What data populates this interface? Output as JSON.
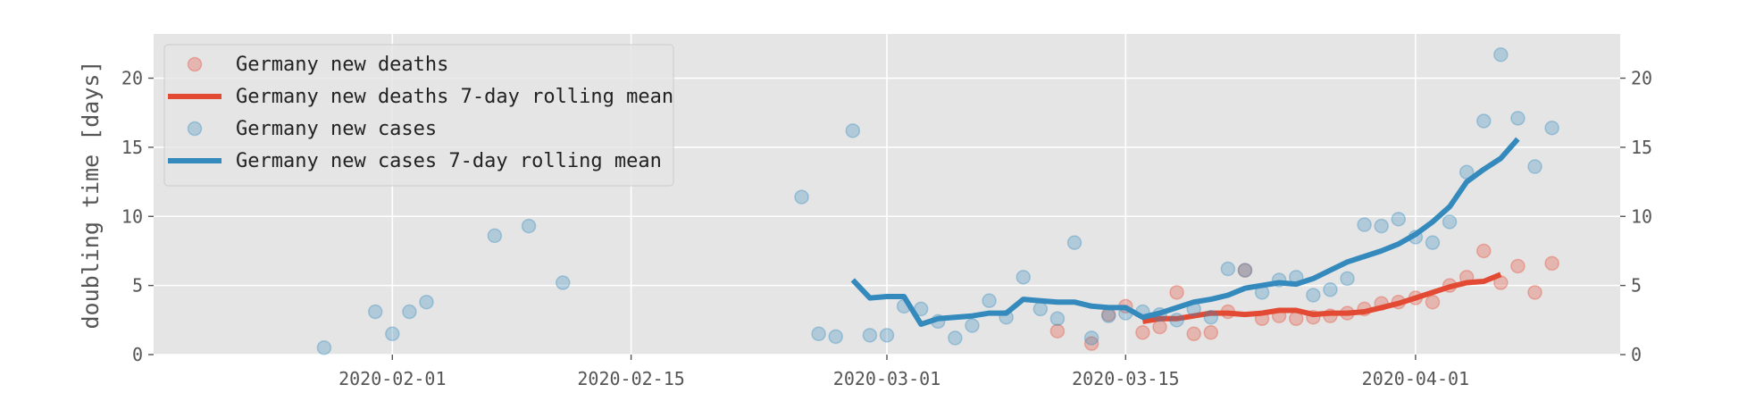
{
  "chart_data": {
    "type": "scatter",
    "title": "",
    "xlabel": "",
    "ylabel": "doubling time [days]",
    "x_axis": {
      "type": "date",
      "min": "2020-01-18",
      "max": "2020-04-13",
      "ticks": [
        "2020-02-01",
        "2020-02-15",
        "2020-03-01",
        "2020-03-15",
        "2020-04-01"
      ]
    },
    "ylim": [
      0,
      23.2
    ],
    "yticks": [
      0,
      5,
      10,
      15,
      20
    ],
    "y_axis_right_mirror": true,
    "grid": true,
    "legend_position": "top-left",
    "colors": {
      "background": "#e5e5e5",
      "grid": "#ffffff",
      "deaths": "#e24a33",
      "cases": "#348abd"
    },
    "series": [
      {
        "name": "Germany new deaths",
        "kind": "points",
        "color": "#e24a33",
        "points": [
          [
            "2020-03-11",
            1.7
          ],
          [
            "2020-03-13",
            0.8
          ],
          [
            "2020-03-14",
            2.9
          ],
          [
            "2020-03-15",
            3.5
          ],
          [
            "2020-03-16",
            1.6
          ],
          [
            "2020-03-17",
            2.0
          ],
          [
            "2020-03-18",
            4.5
          ],
          [
            "2020-03-19",
            1.5
          ],
          [
            "2020-03-20",
            1.6
          ],
          [
            "2020-03-21",
            3.1
          ],
          [
            "2020-03-22",
            6.1
          ],
          [
            "2020-03-23",
            2.6
          ],
          [
            "2020-03-24",
            2.8
          ],
          [
            "2020-03-25",
            2.6
          ],
          [
            "2020-03-26",
            2.7
          ],
          [
            "2020-03-27",
            2.8
          ],
          [
            "2020-03-28",
            3.0
          ],
          [
            "2020-03-29",
            3.3
          ],
          [
            "2020-03-30",
            3.7
          ],
          [
            "2020-03-31",
            3.8
          ],
          [
            "2020-04-01",
            4.1
          ],
          [
            "2020-04-02",
            3.8
          ],
          [
            "2020-04-03",
            5.0
          ],
          [
            "2020-04-04",
            5.6
          ],
          [
            "2020-04-05",
            7.5
          ],
          [
            "2020-04-06",
            5.2
          ],
          [
            "2020-04-07",
            6.4
          ],
          [
            "2020-04-08",
            4.5
          ],
          [
            "2020-04-09",
            6.6
          ]
        ]
      },
      {
        "name": "Germany new deaths 7-day rolling mean",
        "kind": "line",
        "color": "#e24a33",
        "points": [
          [
            "2020-03-16",
            2.4
          ],
          [
            "2020-03-17",
            2.6
          ],
          [
            "2020-03-18",
            2.6
          ],
          [
            "2020-03-19",
            2.8
          ],
          [
            "2020-03-20",
            3.0
          ],
          [
            "2020-03-21",
            3.0
          ],
          [
            "2020-03-22",
            2.9
          ],
          [
            "2020-03-23",
            3.0
          ],
          [
            "2020-03-24",
            3.2
          ],
          [
            "2020-03-25",
            3.2
          ],
          [
            "2020-03-26",
            2.9
          ],
          [
            "2020-03-27",
            3.0
          ],
          [
            "2020-03-28",
            3.0
          ],
          [
            "2020-03-29",
            3.1
          ],
          [
            "2020-03-30",
            3.4
          ],
          [
            "2020-03-31",
            3.7
          ],
          [
            "2020-04-01",
            4.1
          ],
          [
            "2020-04-02",
            4.5
          ],
          [
            "2020-04-03",
            4.9
          ],
          [
            "2020-04-04",
            5.2
          ],
          [
            "2020-04-05",
            5.3
          ],
          [
            "2020-04-06",
            5.8
          ]
        ]
      },
      {
        "name": "Germany new cases",
        "kind": "points",
        "color": "#348abd",
        "points": [
          [
            "2020-01-28",
            0.5
          ],
          [
            "2020-01-31",
            3.1
          ],
          [
            "2020-02-01",
            1.5
          ],
          [
            "2020-02-02",
            3.1
          ],
          [
            "2020-02-03",
            3.8
          ],
          [
            "2020-02-07",
            8.6
          ],
          [
            "2020-02-09",
            9.3
          ],
          [
            "2020-02-11",
            5.2
          ],
          [
            "2020-02-25",
            11.4
          ],
          [
            "2020-02-26",
            1.5
          ],
          [
            "2020-02-27",
            1.3
          ],
          [
            "2020-02-28",
            16.2
          ],
          [
            "2020-02-29",
            1.4
          ],
          [
            "2020-03-01",
            1.4
          ],
          [
            "2020-03-02",
            3.5
          ],
          [
            "2020-03-03",
            3.3
          ],
          [
            "2020-03-04",
            2.4
          ],
          [
            "2020-03-05",
            1.2
          ],
          [
            "2020-03-06",
            2.1
          ],
          [
            "2020-03-07",
            3.9
          ],
          [
            "2020-03-08",
            2.7
          ],
          [
            "2020-03-09",
            5.6
          ],
          [
            "2020-03-10",
            3.3
          ],
          [
            "2020-03-11",
            2.6
          ],
          [
            "2020-03-12",
            8.1
          ],
          [
            "2020-03-13",
            1.2
          ],
          [
            "2020-03-14",
            2.8
          ],
          [
            "2020-03-15",
            3.0
          ],
          [
            "2020-03-16",
            3.1
          ],
          [
            "2020-03-17",
            2.9
          ],
          [
            "2020-03-18",
            2.5
          ],
          [
            "2020-03-19",
            3.3
          ],
          [
            "2020-03-20",
            2.7
          ],
          [
            "2020-03-21",
            6.2
          ],
          [
            "2020-03-22",
            6.1
          ],
          [
            "2020-03-23",
            4.5
          ],
          [
            "2020-03-24",
            5.4
          ],
          [
            "2020-03-25",
            5.6
          ],
          [
            "2020-03-26",
            4.3
          ],
          [
            "2020-03-27",
            4.7
          ],
          [
            "2020-03-28",
            5.5
          ],
          [
            "2020-03-29",
            9.4
          ],
          [
            "2020-03-30",
            9.3
          ],
          [
            "2020-03-31",
            9.8
          ],
          [
            "2020-04-01",
            8.5
          ],
          [
            "2020-04-02",
            8.1
          ],
          [
            "2020-04-03",
            9.6
          ],
          [
            "2020-04-04",
            13.2
          ],
          [
            "2020-04-05",
            16.9
          ],
          [
            "2020-04-06",
            21.7
          ],
          [
            "2020-04-07",
            17.1
          ],
          [
            "2020-04-08",
            13.6
          ],
          [
            "2020-04-09",
            16.4
          ]
        ]
      },
      {
        "name": "Germany new cases 7-day rolling mean",
        "kind": "line",
        "color": "#348abd",
        "points": [
          [
            "2020-02-28",
            5.4
          ],
          [
            "2020-02-29",
            4.1
          ],
          [
            "2020-03-01",
            4.2
          ],
          [
            "2020-03-02",
            4.2
          ],
          [
            "2020-03-03",
            2.2
          ],
          [
            "2020-03-04",
            2.6
          ],
          [
            "2020-03-05",
            2.7
          ],
          [
            "2020-03-06",
            2.8
          ],
          [
            "2020-03-07",
            3.0
          ],
          [
            "2020-03-08",
            3.0
          ],
          [
            "2020-03-09",
            4.0
          ],
          [
            "2020-03-10",
            3.9
          ],
          [
            "2020-03-11",
            3.8
          ],
          [
            "2020-03-12",
            3.8
          ],
          [
            "2020-03-13",
            3.5
          ],
          [
            "2020-03-14",
            3.4
          ],
          [
            "2020-03-15",
            3.4
          ],
          [
            "2020-03-16",
            2.7
          ],
          [
            "2020-03-17",
            3.0
          ],
          [
            "2020-03-18",
            3.4
          ],
          [
            "2020-03-19",
            3.8
          ],
          [
            "2020-03-20",
            4.0
          ],
          [
            "2020-03-21",
            4.3
          ],
          [
            "2020-03-22",
            4.8
          ],
          [
            "2020-03-23",
            5.0
          ],
          [
            "2020-03-24",
            5.2
          ],
          [
            "2020-03-25",
            5.1
          ],
          [
            "2020-03-26",
            5.5
          ],
          [
            "2020-03-27",
            6.1
          ],
          [
            "2020-03-28",
            6.7
          ],
          [
            "2020-03-29",
            7.1
          ],
          [
            "2020-03-30",
            7.5
          ],
          [
            "2020-03-31",
            8.0
          ],
          [
            "2020-04-01",
            8.7
          ],
          [
            "2020-04-02",
            9.6
          ],
          [
            "2020-04-03",
            10.7
          ],
          [
            "2020-04-04",
            12.5
          ],
          [
            "2020-04-05",
            13.4
          ],
          [
            "2020-04-06",
            14.2
          ],
          [
            "2020-04-07",
            15.6
          ]
        ]
      }
    ]
  }
}
